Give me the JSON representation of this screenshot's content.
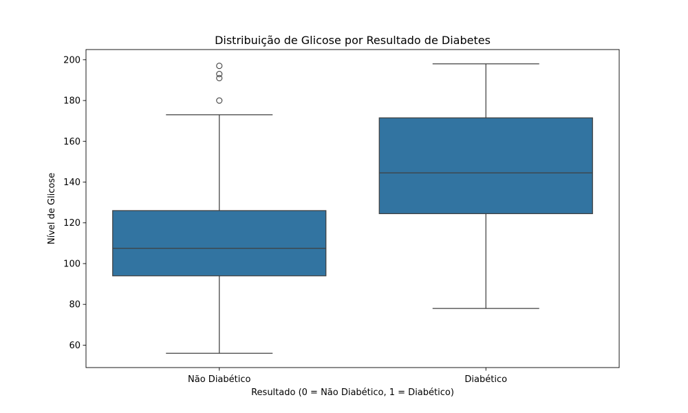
{
  "chart_data": {
    "type": "boxplot",
    "title": "Distribuição de Glicose por Resultado de Diabetes",
    "xlabel": "Resultado (0 = Não Diabético, 1 = Diabético)",
    "ylabel": "Nível de Glicose",
    "categories": [
      "Não Diabético",
      "Diabético"
    ],
    "ylim": [
      49,
      205
    ],
    "yticks": [
      60,
      80,
      100,
      120,
      140,
      160,
      180,
      200
    ],
    "grid": false,
    "legend": "none",
    "box_color": "#3274a1",
    "line_color": "#3f3f3f",
    "boxes": [
      {
        "category": "Não Diabético",
        "whisker_low": 56,
        "q1": 94,
        "median": 107.5,
        "q3": 126,
        "whisker_high": 173,
        "outliers": [
          180,
          191,
          193,
          197
        ]
      },
      {
        "category": "Diabético",
        "whisker_low": 78,
        "q1": 124.5,
        "median": 144.5,
        "q3": 171.5,
        "whisker_high": 198,
        "outliers": []
      }
    ]
  }
}
